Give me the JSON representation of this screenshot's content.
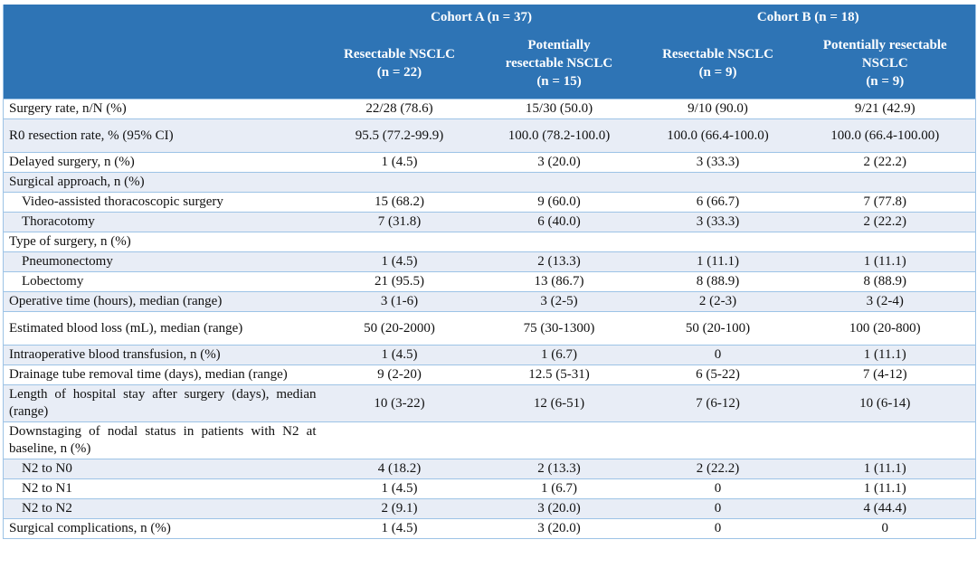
{
  "header": {
    "cohorts": [
      "Cohort A (n = 37)",
      "Cohort B (n = 18)"
    ],
    "subgroups": [
      [
        "Resectable NSCLC",
        "(n = 22)"
      ],
      [
        "Potentially",
        "resectable NSCLC",
        "(n = 15)"
      ],
      [
        "Resectable NSCLC",
        "(n = 9)"
      ],
      [
        "Potentially resectable",
        "NSCLC",
        "(n = 9)"
      ]
    ]
  },
  "colors": {
    "header_bg": "#2e74b5",
    "row_shade": "#e8edf6",
    "rule": "#9dc3e6"
  },
  "rows": [
    {
      "label": "Surgery rate, n/N (%)",
      "values": [
        "22/28 (78.6)",
        "15/30 (50.0)",
        "9/10 (90.0)",
        "9/21 (42.9)"
      ]
    },
    {
      "label": "R0 resection rate, % (95% CI)",
      "values": [
        "95.5 (77.2-99.9)",
        "100.0 (78.2-100.0)",
        "100.0 (66.4-100.0)",
        "100.0 (66.4-100.00)"
      ],
      "tall": true
    },
    {
      "label": "Delayed surgery, n (%)",
      "values": [
        "1 (4.5)",
        "3 (20.0)",
        "3 (33.3)",
        "2 (22.2)"
      ]
    },
    {
      "label": "Surgical approach, n (%)",
      "values": [
        "",
        "",
        "",
        ""
      ]
    },
    {
      "label": "Video-assisted thoracoscopic surgery",
      "indent": true,
      "values": [
        "15 (68.2)",
        "9 (60.0)",
        "6 (66.7)",
        "7 (77.8)"
      ]
    },
    {
      "label": "Thoracotomy",
      "indent": true,
      "values": [
        "7 (31.8)",
        "6 (40.0)",
        "3 (33.3)",
        "2 (22.2)"
      ]
    },
    {
      "label": "Type of surgery, n (%)",
      "values": [
        "",
        "",
        "",
        ""
      ]
    },
    {
      "label": "Pneumonectomy",
      "indent": true,
      "values": [
        "1 (4.5)",
        "2 (13.3)",
        "1 (11.1)",
        "1 (11.1)"
      ]
    },
    {
      "label": "Lobectomy",
      "indent": true,
      "values": [
        "21 (95.5)",
        "13 (86.7)",
        "8 (88.9)",
        "8 (88.9)"
      ]
    },
    {
      "label": "Operative time (hours), median (range)",
      "values": [
        "3 (1-6)",
        "3 (2-5)",
        "2 (2-3)",
        "3 (2-4)"
      ]
    },
    {
      "label": "Estimated blood loss (mL), median (range)",
      "values": [
        "50 (20-2000)",
        "75 (30-1300)",
        "50 (20-100)",
        "100 (20-800)"
      ],
      "tall": true
    },
    {
      "label": "Intraoperative blood transfusion, n (%)",
      "values": [
        "1 (4.5)",
        "1 (6.7)",
        "0",
        "1 (11.1)"
      ]
    },
    {
      "label": "Drainage tube removal time (days), median (range)",
      "values": [
        "9 (2-20)",
        "12.5 (5-31)",
        "6 (5-22)",
        "7 (4-12)"
      ]
    },
    {
      "label": "Length of hospital stay after surgery (days), median (range)",
      "values": [
        "10 (3-22)",
        "12 (6-51)",
        "7 (6-12)",
        "10 (6-14)"
      ]
    },
    {
      "label": "Downstaging of nodal status in patients with N2 at baseline, n (%)",
      "values": [
        "",
        "",
        "",
        ""
      ]
    },
    {
      "label": "N2 to N0",
      "indent": true,
      "values": [
        "4 (18.2)",
        "2 (13.3)",
        "2 (22.2)",
        "1 (11.1)"
      ]
    },
    {
      "label": "N2 to N1",
      "indent": true,
      "values": [
        "1 (4.5)",
        "1 (6.7)",
        "0",
        "1 (11.1)"
      ]
    },
    {
      "label": "N2 to N2",
      "indent": true,
      "values": [
        "2 (9.1)",
        "3 (20.0)",
        "0",
        "4 (44.4)"
      ]
    },
    {
      "label": "Surgical complications, n (%)",
      "values": [
        "1 (4.5)",
        "3 (20.0)",
        "0",
        "0"
      ]
    }
  ]
}
